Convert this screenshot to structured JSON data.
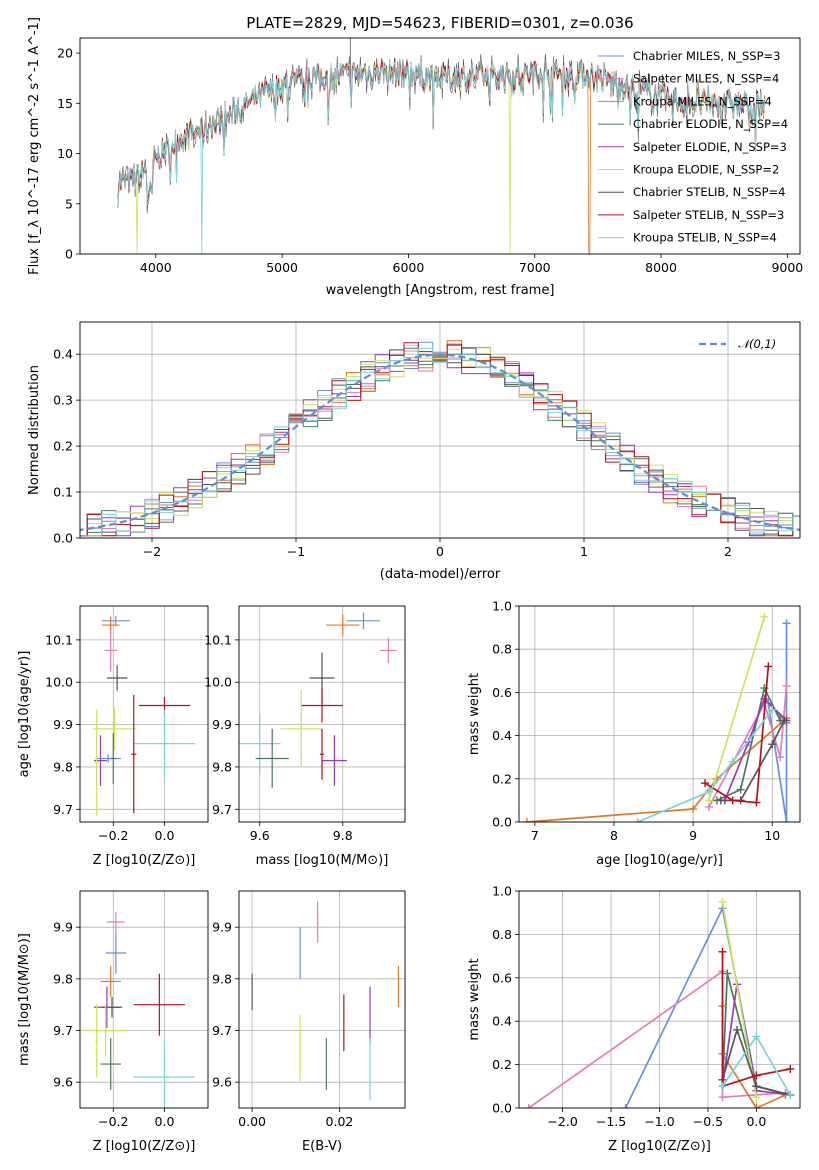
{
  "chart_data": [
    {
      "type": "line",
      "title": "PLATE=2829, MJD=54623, FIBERID=0301, z=0.036",
      "xlabel": "wavelength [Angstrom, rest frame]",
      "ylabel": "Flux [f_λ 10^-17 erg cm^-2 s^-1 A^-1]",
      "xlim": [
        3400,
        9100
      ],
      "ylim": [
        0,
        21.5
      ],
      "xticks": [
        "4000",
        "5000",
        "6000",
        "7000",
        "8000",
        "9000"
      ],
      "yticks": [
        "0",
        "5",
        "10",
        "15",
        "20"
      ],
      "legend_position": "top-right",
      "series": [
        {
          "name": "Chabrier MILES, N_SSP=3",
          "color": "#6a8fdc"
        },
        {
          "name": "Salpeter MILES, N_SSP=4",
          "color": "#e07fb8"
        },
        {
          "name": "Kroupa MILES, N_SSP=4",
          "color": "#e0782a"
        },
        {
          "name": "Chabrier ELODIE, N_SSP=4",
          "color": "#4a7a5a"
        },
        {
          "name": "Salpeter ELODIE, N_SSP=3",
          "color": "#9a3ab8"
        },
        {
          "name": "Kroupa ELODIE, N_SSP=2",
          "color": "#cbe55a"
        },
        {
          "name": "Chabrier STELIB, N_SSP=4",
          "color": "#555555"
        },
        {
          "name": "Salpeter STELIB, N_SSP=3",
          "color": "#b3121a"
        },
        {
          "name": "Kroupa STELIB, N_SSP=4",
          "color": "#7ad3d8"
        }
      ],
      "continuum_x": [
        3700,
        3850,
        4000,
        4200,
        4400,
        4600,
        4800,
        5000,
        5200,
        5400,
        5600,
        5800,
        6000,
        6200,
        6400,
        6600,
        6800,
        7000,
        7200,
        7400,
        7600,
        7800,
        8000,
        8200,
        8400,
        8600,
        8800
      ],
      "continuum_y": [
        7,
        7.5,
        9.5,
        11.5,
        12.5,
        14,
        15.5,
        16.8,
        17.3,
        17.7,
        17.9,
        18.1,
        18,
        17.5,
        17.6,
        17.7,
        17.6,
        17.9,
        17.9,
        17.8,
        17.2,
        16.3,
        15.6,
        15.2,
        15.1,
        14.9,
        14.8
      ]
    },
    {
      "type": "line",
      "xlabel": "(data-model)/error",
      "ylabel": "Normed distribution",
      "xlim": [
        -2.5,
        2.5
      ],
      "ylim": [
        0,
        0.47
      ],
      "xticks": [
        "−2",
        "−1",
        "0",
        "1",
        "2"
      ],
      "yticks": [
        "0.0",
        "0.1",
        "0.2",
        "0.3",
        "0.4"
      ],
      "legend": "𝒩(0,1)",
      "legend_position": "top-right",
      "gaussian": {
        "mean": 0,
        "sigma": 1,
        "color": "#5b8fd8"
      }
    },
    {
      "type": "scatter",
      "xlabel": "Z [log10(Z/Z⊙)]",
      "ylabel": "age [log10(age/yr)]",
      "xlim": [
        -0.33,
        0.17
      ],
      "ylim": [
        9.67,
        10.18
      ],
      "xticks": [
        "−0.2",
        "0.0"
      ],
      "yticks": [
        "9.7",
        "9.8",
        "9.9",
        "10.0",
        "10.1"
      ],
      "points": [
        {
          "series": 0,
          "x": -0.19,
          "y": 10.145,
          "xerr": 0.055,
          "yerr": 0.012
        },
        {
          "series": 2,
          "x": -0.21,
          "y": 10.135,
          "xerr": 0.035,
          "yerr": 0.02
        },
        {
          "series": 1,
          "x": -0.21,
          "y": 10.075,
          "xerr": 0.025,
          "yerr": 0.05
        },
        {
          "series": 6,
          "x": -0.185,
          "y": 10.01,
          "xerr": 0.04,
          "yerr": 0.03
        },
        {
          "series": 7,
          "x": 0.0,
          "y": 9.945,
          "xerr": 0.1,
          "yerr": 0.02
        },
        {
          "series": 5,
          "x": -0.195,
          "y": 9.89,
          "xerr": 0.085,
          "yerr": 0.05
        },
        {
          "series": 8,
          "x": 0.0,
          "y": 9.855,
          "xerr": 0.12,
          "yerr": 0.08
        },
        {
          "series": 4,
          "x": -0.25,
          "y": 9.815,
          "xerr": 0.025,
          "yerr": 0.06
        },
        {
          "series": 0,
          "x": -0.22,
          "y": 9.82,
          "xerr": 0.05,
          "yerr": 0.01
        },
        {
          "series": 3,
          "x": -0.2,
          "y": 9.82,
          "xerr": 0.01,
          "yerr": 0.06
        },
        {
          "series": 7,
          "x": -0.12,
          "y": 9.83,
          "xerr": 0.01,
          "yerr": 0.14
        },
        {
          "series": 5,
          "x": -0.265,
          "y": 9.81,
          "xerr": 0.01,
          "yerr": 0.125
        }
      ]
    },
    {
      "type": "scatter",
      "xlabel": "mass [log10(M/M⊙)]",
      "xlim": [
        9.55,
        9.95
      ],
      "ylim": [
        9.67,
        10.18
      ],
      "xticks": [
        "9.6",
        "9.8"
      ],
      "yticks": [
        "9.7",
        "9.8",
        "9.9",
        "10.0",
        "10.1"
      ],
      "points": [
        {
          "series": 0,
          "x": 9.85,
          "y": 10.145,
          "xerr": 0.04,
          "yerr": 0.02
        },
        {
          "series": 2,
          "x": 9.8,
          "y": 10.135,
          "xerr": 0.04,
          "yerr": 0.025
        },
        {
          "series": 1,
          "x": 9.91,
          "y": 10.075,
          "xerr": 0.02,
          "yerr": 0.03
        },
        {
          "series": 6,
          "x": 9.75,
          "y": 10.01,
          "xerr": 0.03,
          "yerr": 0.06
        },
        {
          "series": 7,
          "x": 9.75,
          "y": 9.945,
          "xerr": 0.05,
          "yerr": 0.04
        },
        {
          "series": 5,
          "x": 9.7,
          "y": 9.89,
          "xerr": 0.05,
          "yerr": 0.09
        },
        {
          "series": 8,
          "x": 9.6,
          "y": 9.855,
          "xerr": 0.05,
          "yerr": 0.07
        },
        {
          "series": 4,
          "x": 9.78,
          "y": 9.815,
          "xerr": 0.03,
          "yerr": 0.06
        },
        {
          "series": 3,
          "x": 9.63,
          "y": 9.82,
          "xerr": 0.04,
          "yerr": 0.07
        },
        {
          "series": 7,
          "x": 9.75,
          "y": 9.83,
          "xerr": 0.005,
          "yerr": 0.06
        }
      ]
    },
    {
      "type": "line",
      "xlabel": "age [log10(age/yr)]",
      "ylabel": "mass weight",
      "xlim": [
        6.8,
        10.35
      ],
      "ylim": [
        0,
        1
      ],
      "xticks": [
        "7",
        "8",
        "9",
        "10"
      ],
      "yticks": [
        "0.0",
        "0.2",
        "0.4",
        "0.6",
        "0.8",
        "1.0"
      ],
      "series": [
        {
          "color_index": 0,
          "x": [
            10.18,
            10.18,
            9.95,
            10.18
          ],
          "y": [
            0.92,
            0.0,
            0.55,
            0.46
          ]
        },
        {
          "color_index": 1,
          "x": [
            9.2,
            9.9,
            10.1,
            10.18
          ],
          "y": [
            0.07,
            0.55,
            0.3,
            0.63
          ]
        },
        {
          "color_index": 2,
          "x": [
            6.9,
            9.0,
            9.3,
            10.18
          ],
          "y": [
            0.0,
            0.06,
            0.2,
            0.48
          ]
        },
        {
          "color_index": 3,
          "x": [
            9.3,
            9.6,
            9.9,
            10.1
          ],
          "y": [
            0.1,
            0.15,
            0.62,
            0.47
          ]
        },
        {
          "color_index": 4,
          "x": [
            9.4,
            9.7,
            9.9,
            10.18
          ],
          "y": [
            0.1,
            0.37,
            0.57,
            0.47
          ]
        },
        {
          "color_index": 5,
          "x": [
            9.2,
            9.9
          ],
          "y": [
            0.1,
            0.95
          ]
        },
        {
          "color_index": 6,
          "x": [
            9.35,
            9.6,
            10.0,
            10.15
          ],
          "y": [
            0.1,
            0.1,
            0.36,
            0.47
          ]
        },
        {
          "color_index": 7,
          "x": [
            9.15,
            9.5,
            9.8,
            9.95
          ],
          "y": [
            0.18,
            0.1,
            0.09,
            0.72
          ]
        },
        {
          "color_index": 8,
          "x": [
            8.3,
            9.2,
            9.5,
            10.0
          ],
          "y": [
            0.0,
            0.14,
            0.28,
            0.52
          ]
        }
      ]
    },
    {
      "type": "scatter",
      "xlabel": "Z [log10(Z/Z⊙)]",
      "ylabel": "mass [log10(M/M⊙)]",
      "xlim": [
        -0.33,
        0.17
      ],
      "ylim": [
        9.55,
        9.97
      ],
      "xticks": [
        "−0.2",
        "0.0"
      ],
      "yticks": [
        "9.6",
        "9.7",
        "9.8",
        "9.9"
      ],
      "points": [
        {
          "series": 1,
          "x": -0.19,
          "y": 9.91,
          "xerr": 0.035,
          "yerr": 0.02
        },
        {
          "series": 0,
          "x": -0.19,
          "y": 9.85,
          "xerr": 0.04,
          "yerr": 0.04
        },
        {
          "series": 2,
          "x": -0.21,
          "y": 9.795,
          "xerr": 0.04,
          "yerr": 0.03
        },
        {
          "series": 4,
          "x": -0.225,
          "y": 9.745,
          "xerr": 0.05,
          "yerr": 0.04
        },
        {
          "series": 6,
          "x": -0.205,
          "y": 9.745,
          "xerr": 0.04,
          "yerr": 0.02
        },
        {
          "series": 7,
          "x": -0.02,
          "y": 9.75,
          "xerr": 0.1,
          "yerr": 0.06
        },
        {
          "series": 5,
          "x": -0.23,
          "y": 9.7,
          "xerr": 0.08,
          "yerr": 0.05
        },
        {
          "series": 3,
          "x": -0.21,
          "y": 9.635,
          "xerr": 0.04,
          "yerr": 0.05
        },
        {
          "series": 8,
          "x": 0.0,
          "y": 9.61,
          "xerr": 0.12,
          "yerr": 0.07
        },
        {
          "series": 5,
          "x": -0.265,
          "y": 9.68,
          "xerr": 0.005,
          "yerr": 0.07
        }
      ]
    },
    {
      "type": "scatter",
      "xlabel": "E(B-V)",
      "xlim": [
        -0.003,
        0.035
      ],
      "ylim": [
        9.55,
        9.97
      ],
      "xticks": [
        "0.00",
        "0.02"
      ],
      "yticks": [
        "9.6",
        "9.7",
        "9.8",
        "9.9"
      ],
      "points": [
        {
          "series": 1,
          "x": 0.015,
          "y": 9.91,
          "yerr": 0.04
        },
        {
          "series": 0,
          "x": 0.011,
          "y": 9.85,
          "yerr": 0.05
        },
        {
          "series": 2,
          "x": 0.0335,
          "y": 9.785,
          "yerr": 0.04
        },
        {
          "series": 6,
          "x": 0.0,
          "y": 9.775,
          "yerr": 0.035
        },
        {
          "series": 4,
          "x": 0.027,
          "y": 9.73,
          "yerr": 0.055
        },
        {
          "series": 7,
          "x": 0.021,
          "y": 9.715,
          "yerr": 0.055
        },
        {
          "series": 5,
          "x": 0.011,
          "y": 9.665,
          "yerr": 0.065
        },
        {
          "series": 3,
          "x": 0.017,
          "y": 9.635,
          "yerr": 0.05
        },
        {
          "series": 8,
          "x": 0.027,
          "y": 9.625,
          "yerr": 0.06
        }
      ]
    },
    {
      "type": "line",
      "xlabel": "Z [log10(Z/Z⊙)]",
      "ylabel": "mass weight",
      "xlim": [
        -2.45,
        0.45
      ],
      "ylim": [
        0,
        1
      ],
      "xticks": [
        "−2.0",
        "−1.5",
        "−1.0",
        "−0.5",
        "0.0"
      ],
      "yticks": [
        "0.0",
        "0.2",
        "0.4",
        "0.6",
        "0.8",
        "1.0"
      ],
      "series": [
        {
          "color_index": 0,
          "x": [
            -1.35,
            -0.35,
            0.0,
            0.35
          ],
          "y": [
            0.0,
            0.92,
            0.1,
            0.06
          ]
        },
        {
          "color_index": 1,
          "x": [
            -2.35,
            -0.35,
            -0.35,
            0.3
          ],
          "y": [
            0.0,
            0.63,
            0.05,
            0.07
          ]
        },
        {
          "color_index": 2,
          "x": [
            -0.35,
            -0.35,
            0.0,
            0.3
          ],
          "y": [
            0.47,
            0.25,
            0.0,
            0.06
          ]
        },
        {
          "color_index": 3,
          "x": [
            -0.35,
            -0.3,
            0.0,
            0.35
          ],
          "y": [
            0.1,
            0.62,
            0.1,
            0.06
          ]
        },
        {
          "color_index": 4,
          "x": [
            -0.35,
            -0.2,
            0.0,
            0.35
          ],
          "y": [
            0.1,
            0.57,
            0.08,
            0.06
          ]
        },
        {
          "color_index": 5,
          "x": [
            -0.35,
            0.0
          ],
          "y": [
            0.95,
            0.05
          ]
        },
        {
          "color_index": 6,
          "x": [
            -0.35,
            -0.2,
            0.0,
            0.35
          ],
          "y": [
            0.13,
            0.36,
            0.1,
            0.06
          ]
        },
        {
          "color_index": 7,
          "x": [
            -0.35,
            -0.35,
            0.0,
            0.35
          ],
          "y": [
            0.72,
            0.1,
            0.15,
            0.18
          ]
        },
        {
          "color_index": 8,
          "x": [
            -0.35,
            0.0,
            0.35
          ],
          "y": [
            0.1,
            0.33,
            0.06
          ]
        }
      ]
    }
  ]
}
